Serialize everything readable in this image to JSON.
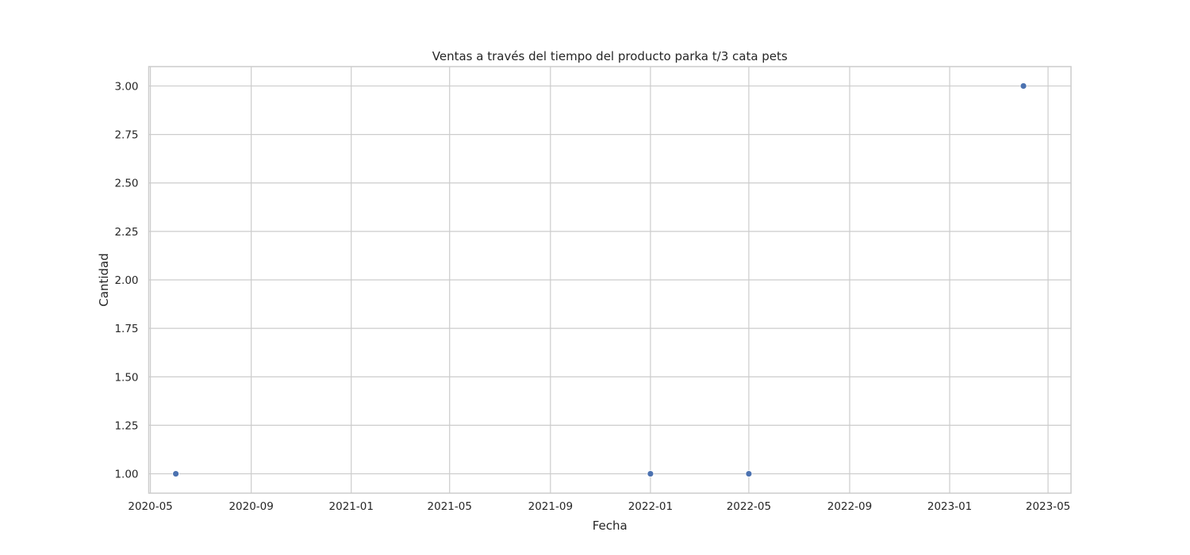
{
  "chart_data": {
    "type": "scatter",
    "title": "Ventas a través del tiempo del producto parka t/3 cata pets",
    "xlabel": "Fecha",
    "ylabel": "Cantidad",
    "x_is_date": true,
    "xlim": [
      "2020-04-29",
      "2023-05-29"
    ],
    "ylim": [
      0.9,
      3.1
    ],
    "xticks": [
      "2020-05",
      "2020-09",
      "2021-01",
      "2021-05",
      "2021-09",
      "2022-01",
      "2022-05",
      "2022-09",
      "2023-01",
      "2023-05"
    ],
    "yticks": [
      "1.00",
      "1.25",
      "1.50",
      "1.75",
      "2.00",
      "2.25",
      "2.50",
      "2.75",
      "3.00"
    ],
    "grid": true,
    "legend": false,
    "series": [
      {
        "color": "#4c72b0",
        "x": [
          "2020-06-01",
          "2022-01-01",
          "2022-05-01",
          "2023-04-01"
        ],
        "y": [
          1,
          1,
          1,
          3
        ]
      }
    ]
  }
}
